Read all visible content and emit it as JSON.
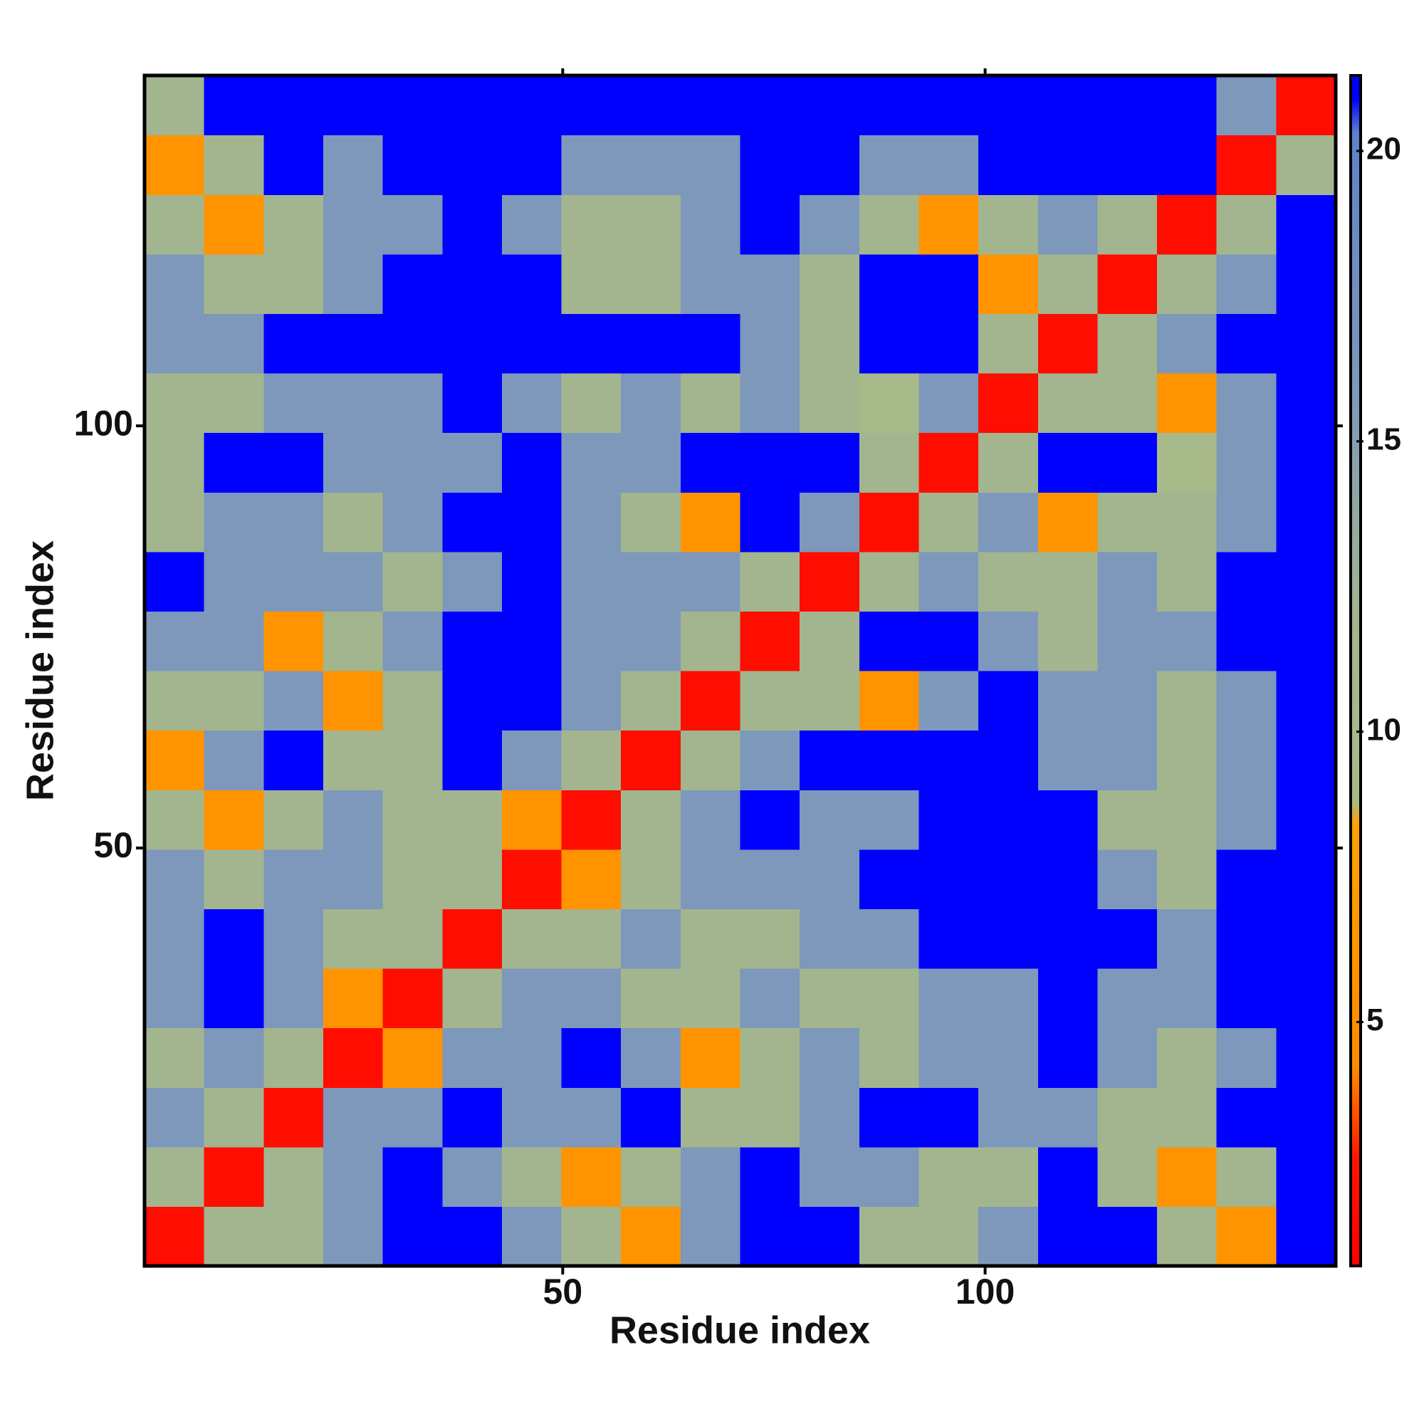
{
  "chart_data": {
    "type": "heatmap",
    "xlabel": "Residue index",
    "ylabel": "Residue index",
    "xlim": [
      0.5,
      141.5
    ],
    "ylim": [
      0.5,
      141.5
    ],
    "xticks": [
      50,
      100
    ],
    "yticks": [
      50,
      100
    ],
    "zlim": [
      0.8,
      21.3
    ],
    "zticks": [
      5,
      10,
      15,
      20
    ],
    "colorscale": [
      {
        "value": 0.8,
        "color": "#ff0000"
      },
      {
        "value": 2.6,
        "color": "#ff1400"
      },
      {
        "value": 4.2,
        "color": "#ff8a00"
      },
      {
        "value": 8.4,
        "color": "#ffa200"
      },
      {
        "value": 8.8,
        "color": "#a9ba8a"
      },
      {
        "value": 12,
        "color": "#a2b58f"
      },
      {
        "value": 16,
        "color": "#7d98bb"
      },
      {
        "value": 20.3,
        "color": "#5f82c8"
      },
      {
        "value": 20.9,
        "color": "#0000ff"
      },
      {
        "value": 21.3,
        "color": "#0000ff"
      }
    ],
    "z": [
      [
        2,
        12,
        12,
        16,
        21,
        21,
        16,
        12,
        6,
        16,
        21,
        21,
        12,
        12,
        16,
        21,
        21,
        12,
        6,
        21
      ],
      [
        12,
        2,
        12,
        16,
        21,
        16,
        12,
        6,
        12,
        16,
        21,
        16,
        16,
        12,
        12,
        21,
        12,
        6,
        12,
        21
      ],
      [
        16,
        12,
        2,
        16,
        16,
        21,
        16,
        16,
        21,
        12,
        12,
        16,
        21,
        21,
        16,
        16,
        12,
        12,
        21,
        21
      ],
      [
        12,
        16,
        12,
        2,
        6,
        16,
        16,
        21,
        16,
        6,
        12,
        16,
        12,
        16,
        16,
        21,
        16,
        12,
        16,
        21
      ],
      [
        16,
        21,
        16,
        6,
        2,
        12,
        16,
        16,
        12,
        12,
        16,
        12,
        12,
        16,
        16,
        21,
        16,
        16,
        21,
        21
      ],
      [
        16,
        21,
        16,
        12,
        12,
        2,
        12,
        12,
        16,
        12,
        12,
        16,
        16,
        21,
        21,
        21,
        21,
        16,
        21,
        21
      ],
      [
        16,
        12,
        16,
        16,
        12,
        12,
        2,
        6,
        12,
        16,
        16,
        16,
        21,
        21,
        21,
        21,
        16,
        12,
        21,
        21
      ],
      [
        12,
        6,
        12,
        16,
        12,
        12,
        6,
        2,
        12,
        16,
        21,
        16,
        16,
        21,
        21,
        21,
        12,
        12,
        16,
        21
      ],
      [
        6,
        16,
        21,
        12,
        12,
        21,
        16,
        12,
        2,
        12,
        16,
        21,
        21,
        21,
        21,
        16,
        16,
        12,
        16,
        21
      ],
      [
        12,
        12,
        16,
        6,
        12,
        21,
        21,
        16,
        12,
        2,
        12,
        12,
        6,
        16,
        21,
        16,
        16,
        12,
        16,
        21
      ],
      [
        16,
        16,
        6,
        12,
        16,
        21,
        21,
        16,
        16,
        12,
        2,
        12,
        21,
        21,
        16,
        12,
        16,
        16,
        21,
        21
      ],
      [
        21,
        16,
        16,
        16,
        12,
        16,
        21,
        16,
        16,
        16,
        12,
        2,
        12,
        16,
        12,
        12,
        16,
        12,
        21,
        21
      ],
      [
        12,
        16,
        16,
        12,
        16,
        21,
        21,
        16,
        12,
        6,
        21,
        16,
        2,
        12,
        16,
        6,
        12,
        12,
        16,
        21
      ],
      [
        12,
        21,
        21,
        16,
        16,
        16,
        21,
        16,
        16,
        21,
        21,
        21,
        12,
        2,
        12,
        21,
        21,
        9,
        16,
        21
      ],
      [
        12,
        12,
        16,
        16,
        16,
        21,
        16,
        12,
        16,
        12,
        16,
        12,
        9,
        16,
        2,
        12,
        12,
        6,
        16,
        21
      ],
      [
        16,
        16,
        21,
        21,
        21,
        21,
        21,
        21,
        21,
        21,
        16,
        12,
        21,
        21,
        12,
        2,
        12,
        16,
        21,
        21
      ],
      [
        16,
        12,
        12,
        16,
        21,
        21,
        21,
        12,
        12,
        16,
        16,
        12,
        21,
        21,
        6,
        12,
        2,
        12,
        16,
        21
      ],
      [
        12,
        6,
        12,
        16,
        16,
        21,
        16,
        12,
        12,
        16,
        21,
        16,
        12,
        6,
        12,
        16,
        12,
        2,
        12,
        21
      ],
      [
        6,
        12,
        21,
        16,
        21,
        21,
        21,
        16,
        16,
        16,
        21,
        21,
        16,
        16,
        21,
        21,
        21,
        21,
        2,
        12
      ],
      [
        12,
        21,
        21,
        21,
        21,
        21,
        21,
        21,
        21,
        21,
        21,
        21,
        21,
        21,
        21,
        21,
        21,
        21,
        16,
        2
      ]
    ]
  }
}
